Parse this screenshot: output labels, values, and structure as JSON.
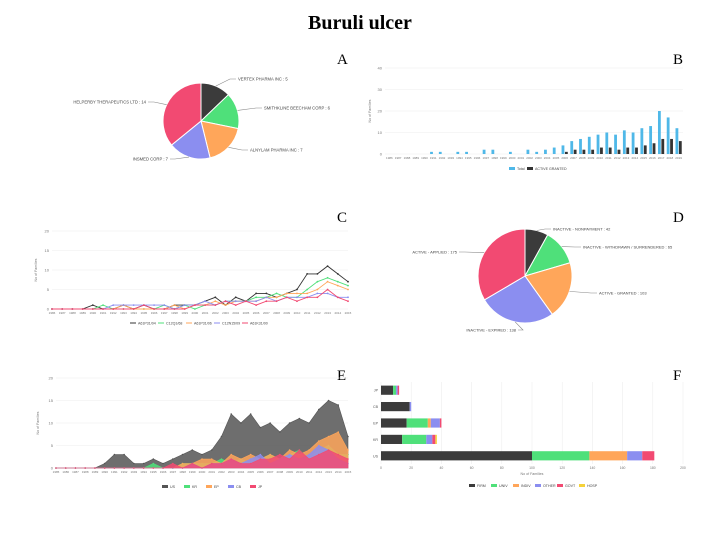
{
  "title": "Buruli ulcer",
  "panel_letters": [
    "A",
    "B",
    "C",
    "D",
    "E",
    "F"
  ],
  "chart_data": [
    {
      "panel": "A",
      "type": "pie",
      "slices": [
        {
          "label": "VERTEX PHARMA INC : 5",
          "value": 5,
          "color": "#3b3b3b"
        },
        {
          "label": "SMITHKLINE BEECHAM CORP : 6",
          "value": 6,
          "color": "#4fe07a"
        },
        {
          "label": "ALNYLAM PHARMA INC : 7",
          "value": 7,
          "color": "#ffa65a"
        },
        {
          "label": "INSMED CORP : 7",
          "value": 7,
          "color": "#8b8ef0"
        },
        {
          "label": "HELPERBY THERAPEUTICS LTD : 14",
          "value": 14,
          "color": "#f24a72"
        }
      ]
    },
    {
      "panel": "B",
      "type": "bar",
      "categories": [
        "1986",
        "1987",
        "1988",
        "1989",
        "1990",
        "1991",
        "1992",
        "1993",
        "1994",
        "1995",
        "1996",
        "1997",
        "1998",
        "1999",
        "2000",
        "2001",
        "2002",
        "2003",
        "2004",
        "2005",
        "2006",
        "2007",
        "2008",
        "2009",
        "2010",
        "2011",
        "2012",
        "2013",
        "2014",
        "2015",
        "2016",
        "2017",
        "2018",
        "2019"
      ],
      "series": [
        {
          "name": "Total",
          "color": "#4fb8e8",
          "values": [
            0,
            0,
            0,
            0,
            0,
            1,
            1,
            0,
            1,
            1,
            0,
            2,
            2,
            0,
            1,
            0,
            2,
            1,
            2,
            3,
            4,
            6,
            7,
            8,
            9,
            10,
            9,
            11,
            10,
            12,
            13,
            20,
            17,
            12
          ]
        },
        {
          "name": "ACTIVE GRANTED",
          "color": "#333333",
          "values": [
            0,
            0,
            0,
            0,
            0,
            0,
            0,
            0,
            0,
            0,
            0,
            0,
            0,
            0,
            0,
            0,
            0,
            0,
            0,
            0,
            1,
            2,
            2,
            2,
            3,
            3,
            2,
            3,
            3,
            4,
            5,
            7,
            7,
            6
          ]
        }
      ],
      "ylim": [
        0,
        40
      ],
      "yticks": [
        0,
        10,
        20,
        30,
        40
      ],
      "ylabel": "No of Families"
    },
    {
      "panel": "C",
      "type": "line",
      "categories": [
        "1986",
        "1987",
        "1988",
        "1989",
        "1990",
        "1991",
        "1992",
        "1993",
        "1994",
        "1995",
        "1996",
        "1997",
        "1998",
        "1999",
        "2000",
        "2001",
        "2002",
        "2003",
        "2004",
        "2005",
        "2006",
        "2007",
        "2008",
        "2009",
        "2010",
        "2011",
        "2012",
        "2013",
        "2014",
        "2015"
      ],
      "series": [
        {
          "name": "A61P31/04",
          "color": "#333333",
          "values": [
            0,
            0,
            0,
            0,
            1,
            0,
            0,
            1,
            0,
            1,
            0,
            0,
            1,
            1,
            1,
            2,
            3,
            1,
            3,
            2,
            4,
            4,
            3,
            4,
            5,
            9,
            9,
            11,
            9,
            7
          ]
        },
        {
          "name": "C12Q1/68",
          "color": "#4fe07a",
          "values": [
            0,
            0,
            0,
            0,
            0,
            1,
            0,
            0,
            0,
            0,
            0,
            1,
            0,
            1,
            0,
            1,
            1,
            2,
            2,
            2,
            3,
            3,
            4,
            3,
            3,
            5,
            7,
            8,
            7,
            6
          ]
        },
        {
          "name": "A61P31/06",
          "color": "#ffa65a",
          "values": [
            0,
            0,
            0,
            0,
            0,
            0,
            0,
            1,
            0,
            0,
            0,
            0,
            1,
            0,
            1,
            1,
            2,
            1,
            2,
            2,
            2,
            3,
            3,
            4,
            4,
            4,
            5,
            7,
            6,
            5
          ]
        },
        {
          "name": "C12N15/09",
          "color": "#8b8ef0",
          "values": [
            0,
            0,
            0,
            0,
            0,
            0,
            1,
            1,
            1,
            1,
            1,
            1,
            0,
            1,
            1,
            2,
            1,
            2,
            2,
            2,
            2,
            3,
            2,
            3,
            3,
            3,
            4,
            4,
            3,
            3
          ]
        },
        {
          "name": "A61K31/00",
          "color": "#f24a72",
          "values": [
            0,
            0,
            0,
            0,
            0,
            0,
            0,
            0,
            0,
            1,
            0,
            0,
            0,
            0,
            1,
            1,
            1,
            2,
            1,
            2,
            1,
            2,
            2,
            3,
            2,
            3,
            3,
            5,
            3,
            2
          ]
        }
      ],
      "ylim": [
        0,
        20
      ],
      "yticks": [
        0,
        5,
        10,
        15,
        20
      ],
      "ylabel": "No of Families"
    },
    {
      "panel": "D",
      "type": "pie",
      "slices": [
        {
          "label": "INACTIVE - NONPAYMENT : 42",
          "value": 42,
          "color": "#3b3b3b"
        },
        {
          "label": "INACTIVE - WITHDRAWN / SURRENDERED : 65",
          "value": 65,
          "color": "#4fe07a"
        },
        {
          "label": "ACTIVE - GRANTED : 103",
          "value": 103,
          "color": "#ffa65a"
        },
        {
          "label": "INACTIVE - EXPIRED : 138",
          "value": 138,
          "color": "#8b8ef0"
        },
        {
          "label": "ACTIVE - APPLIED : 175",
          "value": 175,
          "color": "#f24a72"
        }
      ]
    },
    {
      "panel": "E",
      "type": "area",
      "categories": [
        "1985",
        "1986",
        "1987",
        "1988",
        "1989",
        "1990",
        "1991",
        "1992",
        "1993",
        "1994",
        "1995",
        "1996",
        "1997",
        "1998",
        "1999",
        "2000",
        "2001",
        "2002",
        "2003",
        "2004",
        "2005",
        "2006",
        "2007",
        "2008",
        "2009",
        "2010",
        "2011",
        "2012",
        "2013",
        "2014",
        "2015"
      ],
      "series": [
        {
          "name": "US",
          "color": "#555555",
          "values": [
            0,
            0,
            0,
            0,
            0,
            1,
            3,
            3,
            1,
            1,
            2,
            1,
            2,
            3,
            4,
            3,
            4,
            7,
            12,
            10,
            12,
            9,
            10,
            8,
            10,
            11,
            10,
            13,
            15,
            14,
            7
          ]
        },
        {
          "name": "KR",
          "color": "#4fe07a",
          "values": [
            0,
            0,
            0,
            0,
            0,
            0,
            0,
            0,
            0,
            0,
            1,
            0,
            0,
            1,
            1,
            1,
            1,
            2,
            1,
            2,
            1,
            2,
            3,
            2,
            3,
            4,
            2,
            4,
            5,
            3,
            3
          ]
        },
        {
          "name": "EP",
          "color": "#ffa65a",
          "values": [
            0,
            0,
            0,
            0,
            0,
            0,
            0,
            0,
            0,
            0,
            0,
            0,
            0,
            1,
            1,
            2,
            2,
            1,
            3,
            2,
            3,
            2,
            3,
            2,
            4,
            3,
            4,
            6,
            7,
            8,
            4
          ]
        },
        {
          "name": "CB",
          "color": "#8b8ef0",
          "values": [
            0,
            0,
            0,
            0,
            0,
            0,
            0,
            0,
            0,
            0,
            0,
            0,
            0,
            0,
            1,
            0,
            1,
            1,
            2,
            1,
            2,
            3,
            1,
            2,
            3,
            2,
            3,
            5,
            4,
            2,
            1
          ]
        },
        {
          "name": "JP",
          "color": "#f24a72",
          "values": [
            0,
            0,
            0,
            0,
            0,
            0,
            0,
            0,
            0,
            0,
            0,
            0,
            1,
            0,
            1,
            0,
            1,
            1,
            2,
            1,
            1,
            2,
            2,
            3,
            2,
            4,
            2,
            3,
            4,
            3,
            2
          ]
        }
      ],
      "ylim": [
        0,
        20
      ],
      "yticks": [
        0,
        5,
        10,
        15,
        20
      ],
      "ylabel": "No of Families"
    },
    {
      "panel": "F",
      "type": "bar",
      "orientation": "horizontal-stacked",
      "categories": [
        "JP",
        "CB",
        "EP",
        "KR",
        "US"
      ],
      "series": [
        {
          "name": "FIRM",
          "color": "#3b3b3b",
          "values": [
            8,
            19,
            17,
            14,
            100
          ]
        },
        {
          "name": "UNIV",
          "color": "#4fe07a",
          "values": [
            2,
            0,
            14,
            16,
            38
          ]
        },
        {
          "name": "INDIV",
          "color": "#ffa65a",
          "values": [
            0,
            0,
            2,
            0,
            25
          ]
        },
        {
          "name": "OTHER",
          "color": "#8b8ef0",
          "values": [
            1,
            1,
            6,
            4,
            10
          ]
        },
        {
          "name": "GOVT",
          "color": "#f24a72",
          "values": [
            1,
            0,
            1,
            2,
            8
          ]
        },
        {
          "name": "HOSP",
          "color": "#f5d23a",
          "values": [
            0,
            0,
            0,
            1,
            0
          ]
        }
      ],
      "xlim": [
        0,
        200
      ],
      "xticks": [
        0,
        20,
        40,
        60,
        80,
        100,
        120,
        140,
        160,
        180,
        200
      ],
      "xlabel": "No of Families"
    }
  ]
}
